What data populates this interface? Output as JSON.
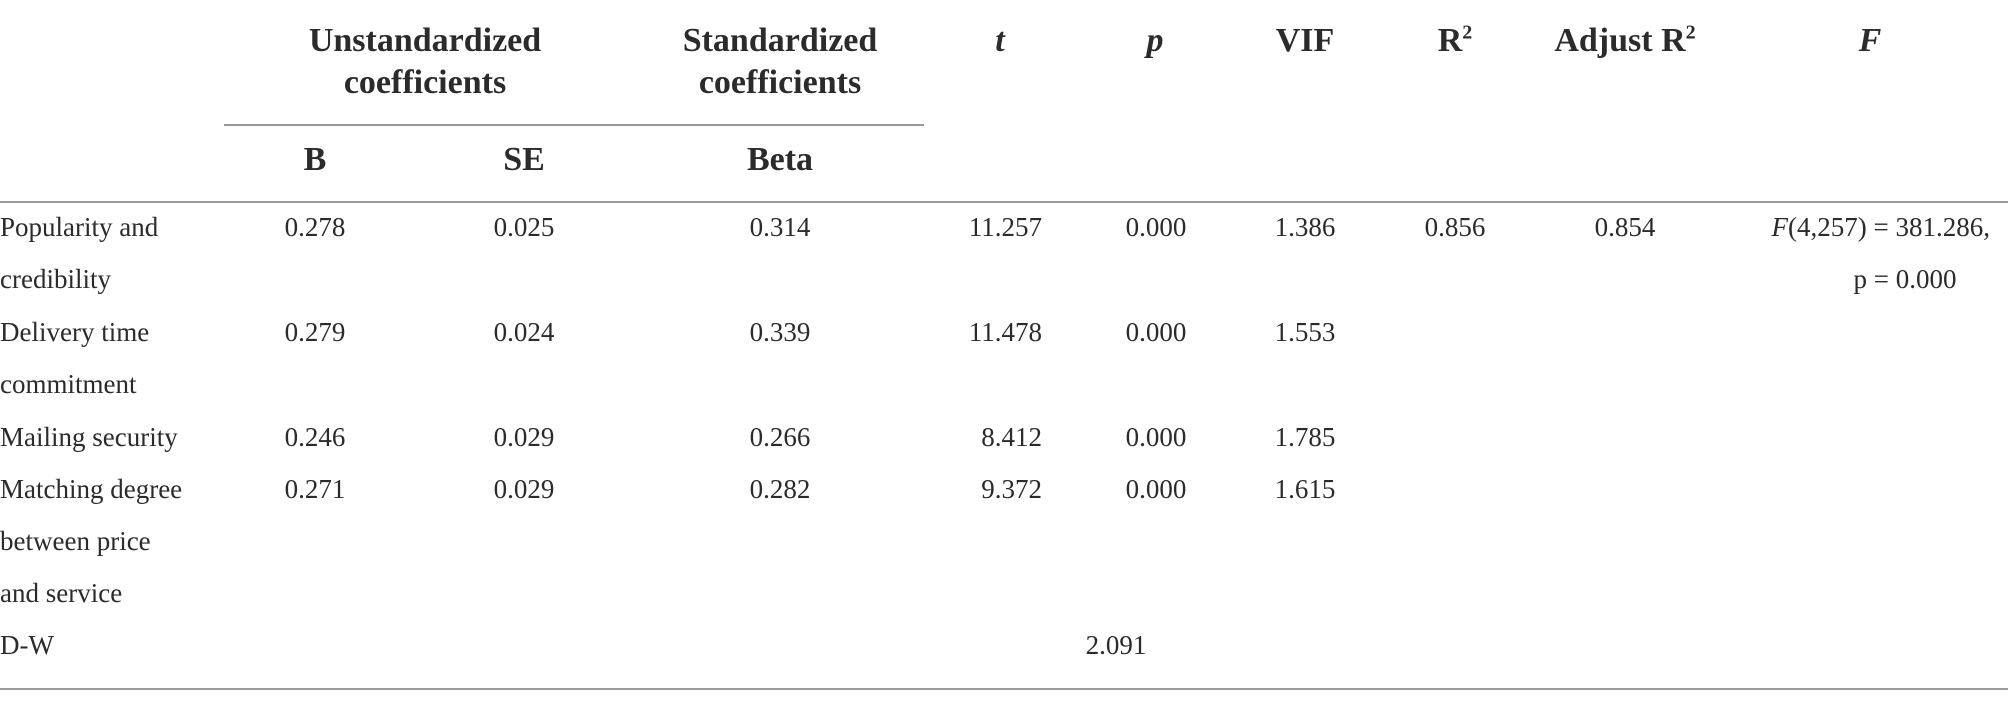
{
  "table": {
    "headers": {
      "unstd_line1": "Unstandardized",
      "unstd_line2": "coefficients",
      "std_line1": "Standardized",
      "std_line2": "coefficients",
      "t": "t",
      "p": "p",
      "vif": "VIF",
      "r2_base": "R",
      "r2_sup": "2",
      "adj_r2_base": "Adjust R",
      "adj_r2_sup": "2",
      "f": "F",
      "b": "B",
      "se": "SE",
      "beta": "Beta"
    },
    "rows": [
      {
        "label_lines": [
          "Popularity and",
          "credibility"
        ],
        "b": "0.278",
        "se": "0.025",
        "beta": "0.314",
        "t": "11.257",
        "p": "0.000",
        "vif": "1.386",
        "r2": "0.856",
        "adj_r2": "0.854",
        "f_italic": "F",
        "f_rest": "(4,257) = 381.286,",
        "f_line2": "p = 0.000"
      },
      {
        "label_lines": [
          "Delivery time",
          "commitment"
        ],
        "b": "0.279",
        "se": "0.024",
        "beta": "0.339",
        "t": "11.478",
        "p": "0.000",
        "vif": "1.553"
      },
      {
        "label_lines": [
          "Mailing security"
        ],
        "b": "0.246",
        "se": "0.029",
        "beta": "0.266",
        "t": "8.412",
        "p": "0.000",
        "vif": "1.785"
      },
      {
        "label_lines": [
          "Matching degree",
          "between price",
          "and service"
        ],
        "b": "0.271",
        "se": "0.029",
        "beta": "0.282",
        "t": "9.372",
        "p": "0.000",
        "vif": "1.615"
      }
    ],
    "dw": {
      "label": "D-W",
      "value": "2.091"
    }
  }
}
